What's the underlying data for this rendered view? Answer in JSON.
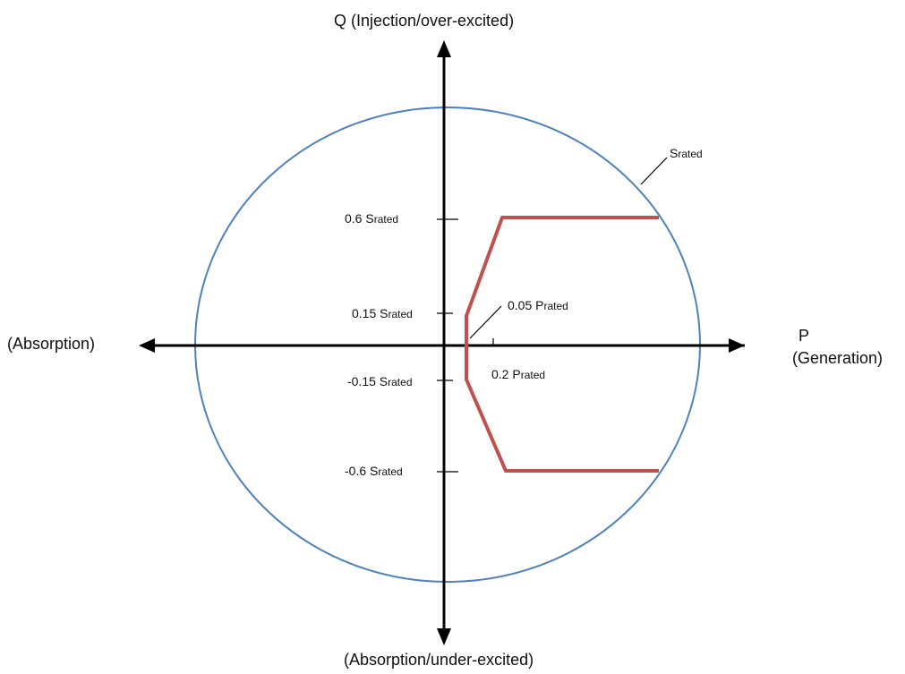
{
  "axes": {
    "q_positive_label": "Q (Injection/over-excited)",
    "q_negative_label": "(Absorption/under-excited)",
    "p_positive_label": "P",
    "p_positive_sublabel": "(Generation)",
    "p_negative_label": "(Absorption)"
  },
  "circle_label": {
    "main": "S",
    "sub": "rated"
  },
  "ticks": {
    "q_0_6": {
      "prefix": "0.6 S",
      "sub": "rated"
    },
    "q_0_15": {
      "prefix": "0.15 S",
      "sub": "rated"
    },
    "q_m0_15": {
      "prefix": "-0.15 S",
      "sub": "rated"
    },
    "q_m0_6": {
      "prefix": "-0.6 S",
      "sub": "rated"
    },
    "p_0_05": {
      "prefix": "0.05 P",
      "sub": "rated"
    },
    "p_0_2": {
      "prefix": "0.2 P",
      "sub": "rated"
    }
  },
  "colors": {
    "axis": "#000000",
    "circle": "#4f81bd",
    "boundary": "#c0504d"
  }
}
